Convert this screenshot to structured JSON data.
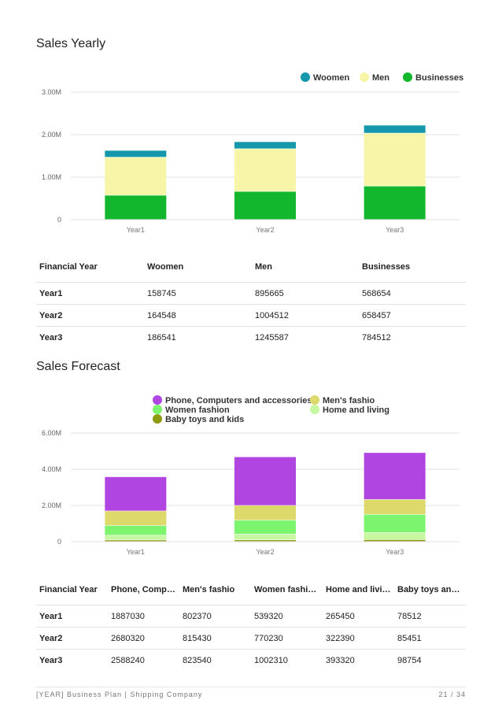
{
  "sales_yearly": {
    "title": "Sales Yearly",
    "table": {
      "headers": [
        "Financial Year",
        "Woomen",
        "Men",
        "Businesses"
      ],
      "rows": [
        [
          "Year1",
          "158745",
          "895665",
          "568654"
        ],
        [
          "Year2",
          "164548",
          "1004512",
          "658457"
        ],
        [
          "Year3",
          "186541",
          "1245587",
          "784512"
        ]
      ]
    }
  },
  "sales_forecast": {
    "title": "Sales Forecast",
    "table": {
      "headers": [
        "Financial Year",
        "Phone, Comp…",
        "Men's fashio",
        "Women fashi…",
        "Home and livi…",
        "Baby toys an…"
      ],
      "rows": [
        [
          "Year1",
          "1887030",
          "802370",
          "539320",
          "265450",
          "78512"
        ],
        [
          "Year2",
          "2680320",
          "815430",
          "770230",
          "322390",
          "85451"
        ],
        [
          "Year3",
          "2588240",
          "823540",
          "1002310",
          "393320",
          "98754"
        ]
      ]
    }
  },
  "footer": {
    "left": "[YEAR] Business Plan | Shipping Company",
    "right": "21 / 34"
  },
  "chart_data": [
    {
      "type": "bar",
      "stacked": true,
      "title": "Sales Yearly",
      "categories": [
        "Year1",
        "Year2",
        "Year3"
      ],
      "series": [
        {
          "name": "Businesses",
          "color": "#13b72e",
          "values": [
            568654,
            658457,
            784512
          ]
        },
        {
          "name": "Men",
          "color": "#f7f5a8",
          "values": [
            895665,
            1004512,
            1245587
          ]
        },
        {
          "name": "Woomen",
          "color": "#1598ab",
          "values": [
            158745,
            164548,
            186541
          ]
        }
      ],
      "legend_order": [
        "Woomen",
        "Men",
        "Businesses"
      ],
      "yticks": [
        0,
        1000000,
        2000000,
        3000000
      ],
      "ytick_labels": [
        "0",
        "1.00M",
        "2.00M",
        "3.00M"
      ],
      "ylim": [
        0,
        3000000
      ],
      "legend": "top-right"
    },
    {
      "type": "bar",
      "stacked": true,
      "title": "Sales Forecast",
      "categories": [
        "Year1",
        "Year2",
        "Year3"
      ],
      "series": [
        {
          "name": "Baby toys and kids",
          "color": "#8e9a10",
          "values": [
            78512,
            85451,
            98754
          ]
        },
        {
          "name": "Home and living",
          "color": "#c7f7a1",
          "values": [
            265450,
            322390,
            393320
          ]
        },
        {
          "name": "Women fashion",
          "color": "#7df46e",
          "values": [
            539320,
            770230,
            1002310
          ]
        },
        {
          "name": "Men's fashio",
          "color": "#ddd96a",
          "values": [
            802370,
            815430,
            823540
          ]
        },
        {
          "name": "Phone, Computers and accessories",
          "color": "#b045e2",
          "values": [
            1887030,
            2680320,
            2588240
          ]
        }
      ],
      "legend_order": [
        "Phone, Computers and accessories",
        "Men's fashio",
        "Women fashion",
        "Home and living",
        "Baby toys and kids"
      ],
      "yticks": [
        0,
        2000000,
        4000000,
        6000000
      ],
      "ytick_labels": [
        "0",
        "2.00M",
        "4.00M",
        "6.00M"
      ],
      "ylim": [
        0,
        6000000
      ],
      "legend": "top-center"
    }
  ]
}
